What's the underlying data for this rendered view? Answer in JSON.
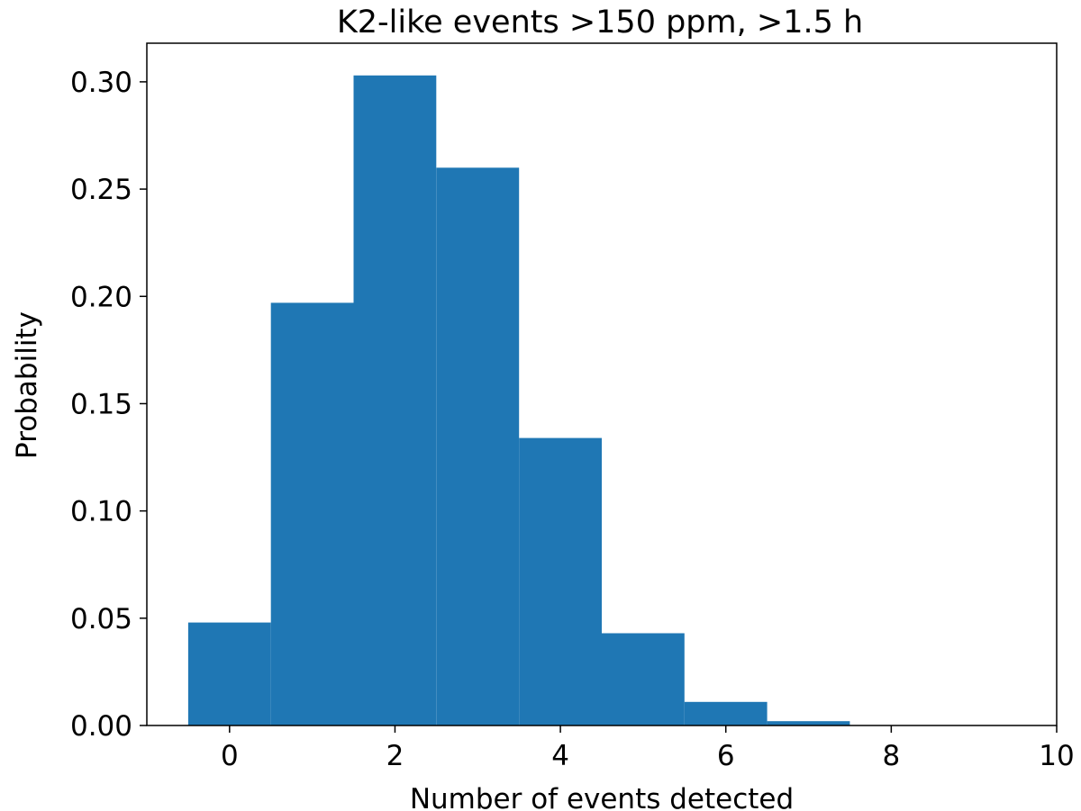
{
  "chart_data": {
    "type": "bar",
    "title": "K2-like events >150 ppm, >1.5 h",
    "xlabel": "Number of events detected",
    "ylabel": "Probability",
    "x": [
      0,
      1,
      2,
      3,
      4,
      5,
      6,
      7
    ],
    "bin_width": 1,
    "values": [
      0.048,
      0.197,
      0.303,
      0.26,
      0.134,
      0.043,
      0.011,
      0.002
    ],
    "xlim": [
      -1.0,
      10
    ],
    "ylim": [
      0,
      0.318
    ],
    "xticks": [
      0,
      2,
      4,
      6,
      8,
      10
    ],
    "yticks": [
      0.0,
      0.05,
      0.1,
      0.15,
      0.2,
      0.25,
      0.3
    ],
    "xtick_labels": [
      "0",
      "2",
      "4",
      "6",
      "8",
      "10"
    ],
    "ytick_labels": [
      "0.00",
      "0.05",
      "0.10",
      "0.15",
      "0.20",
      "0.25",
      "0.30"
    ],
    "grid": false,
    "bar_color": "#1f77b4"
  }
}
